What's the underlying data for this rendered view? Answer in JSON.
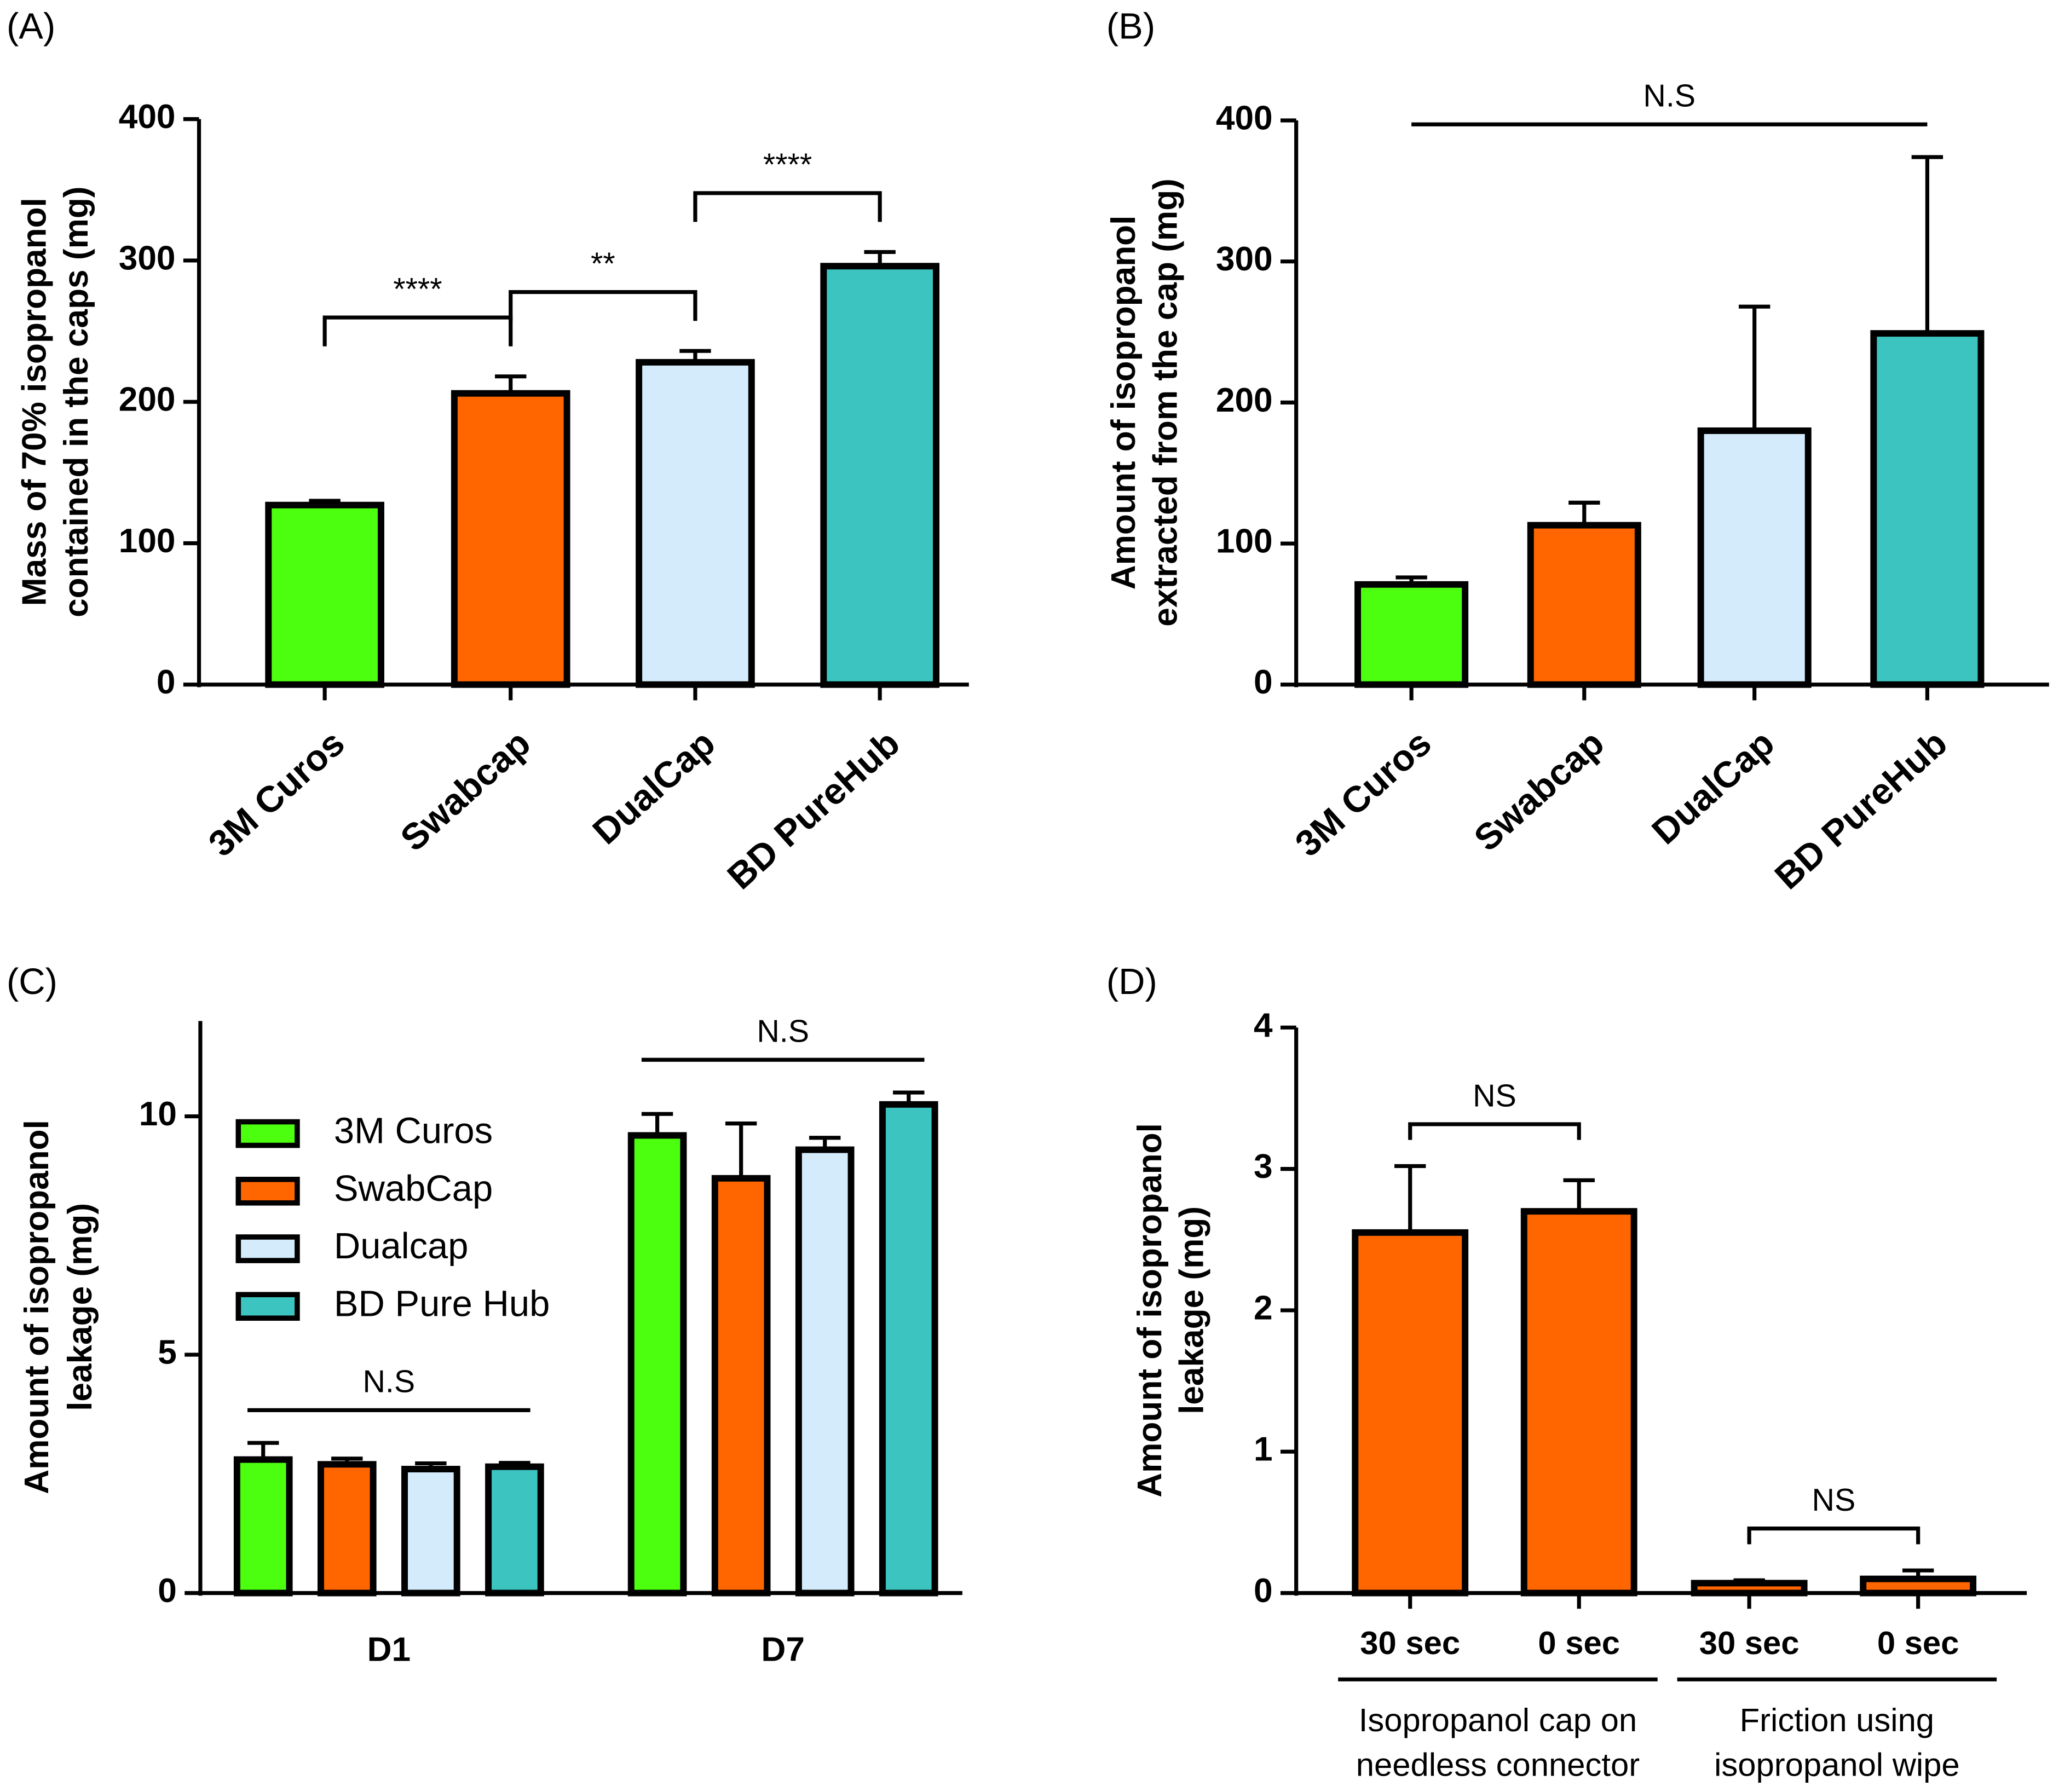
{
  "chart_data": [
    {
      "panel": "(A)",
      "type": "bar",
      "ylabel": [
        "Mass of 70% isopropanol",
        "contained in the caps (mg)"
      ],
      "categories": [
        "3M Curos",
        "Swabcap",
        "DualCap",
        "BD PureHub"
      ],
      "values": [
        127,
        206,
        228,
        296
      ],
      "errors": [
        3,
        12,
        8,
        10
      ],
      "colors": [
        "#4cff0f",
        "#ff6600",
        "#d4ebfb",
        "#3cc4c0"
      ],
      "ylim": [
        0,
        400
      ],
      "yticks": [
        0,
        100,
        200,
        300,
        400
      ],
      "brackets": [
        {
          "between": [
            0,
            1
          ],
          "label": "****"
        },
        {
          "between": [
            1,
            2
          ],
          "label": "**"
        },
        {
          "between": [
            2,
            3
          ],
          "label": "****"
        }
      ]
    },
    {
      "panel": "(B)",
      "type": "bar",
      "ylabel": [
        "Amount of isopropanol",
        "extracted from the cap (mg)"
      ],
      "categories": [
        "3M Curos",
        "Swabcap",
        "DualCap",
        "BD PureHub"
      ],
      "values": [
        71,
        113,
        180,
        249
      ],
      "errors": [
        5,
        16,
        88,
        125
      ],
      "colors": [
        "#4cff0f",
        "#ff6600",
        "#d4ebfb",
        "#3cc4c0"
      ],
      "ylim": [
        0,
        400
      ],
      "yticks": [
        0,
        100,
        200,
        300,
        400
      ],
      "brackets": [
        {
          "between": [
            0,
            3
          ],
          "label": "N.S"
        }
      ]
    },
    {
      "panel": "(C)",
      "type": "grouped_bar",
      "ylabel": [
        "Amount of isopropanol",
        "leakage (mg)"
      ],
      "categories": [
        "D1",
        "D7"
      ],
      "series": [
        {
          "name": "3M Curos",
          "color": "#4cff0f",
          "values": [
            2.8,
            9.6
          ],
          "errors": [
            0.35,
            0.45
          ]
        },
        {
          "name": "SwabCap",
          "color": "#ff6600",
          "values": [
            2.7,
            8.7
          ],
          "errors": [
            0.12,
            1.15
          ]
        },
        {
          "name": "Dualcap",
          "color": "#d4ebfb",
          "values": [
            2.6,
            9.3
          ],
          "errors": [
            0.12,
            0.25
          ]
        },
        {
          "name": "BD Pure Hub",
          "color": "#3cc4c0",
          "values": [
            2.65,
            10.25
          ],
          "errors": [
            0.08,
            0.25
          ]
        }
      ],
      "ylim": [
        0,
        12
      ],
      "yticks": [
        0,
        5,
        10
      ],
      "legend": "top-left",
      "brackets": [
        {
          "group": 0,
          "label": "N.S"
        },
        {
          "group": 1,
          "label": "N.S"
        }
      ]
    },
    {
      "panel": "(D)",
      "type": "bar",
      "ylabel": [
        "Amount of isopropanol",
        "leakage (mg)"
      ],
      "categories": [
        "30 sec",
        "0 sec",
        "30 sec",
        "0 sec"
      ],
      "values": [
        2.55,
        2.7,
        0.07,
        0.1
      ],
      "errors": [
        0.47,
        0.22,
        0.02,
        0.06
      ],
      "colors": [
        "#ff6600",
        "#ff6600",
        "#ff6600",
        "#ff6600"
      ],
      "ylim": [
        0,
        4
      ],
      "yticks": [
        0,
        1,
        2,
        3,
        4
      ],
      "brackets": [
        {
          "between": [
            0,
            1
          ],
          "label": "NS"
        },
        {
          "between": [
            2,
            3
          ],
          "label": "NS"
        }
      ],
      "groups": [
        {
          "between": [
            0,
            1
          ],
          "label": [
            "Isopropanol cap on",
            "needless connector"
          ]
        },
        {
          "between": [
            2,
            3
          ],
          "label": [
            "Friction using",
            "isopropanol wipe"
          ]
        }
      ]
    }
  ]
}
